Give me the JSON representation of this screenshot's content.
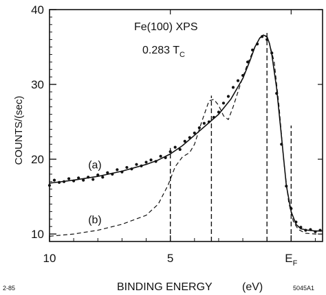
{
  "chart_data": {
    "type": "scatter",
    "title_line1": "Fe(100) XPS",
    "title_line2_prefix": "0.283 T",
    "title_line2_sub": "C",
    "xlabel": "BINDING ENERGY",
    "xunit": "(eV)",
    "ylabel": "COUNTS/(sec)",
    "corner_left": "2-85",
    "corner_right": "5045A1",
    "xlim": [
      10,
      -1.3
    ],
    "ylim": [
      9,
      40
    ],
    "yticks": [
      10,
      20,
      30,
      40
    ],
    "xticks": [
      {
        "value": 10,
        "label": "10"
      },
      {
        "value": 5,
        "label": "5"
      },
      {
        "value": 0,
        "label": "E",
        "sub": "F"
      }
    ],
    "curve_labels": [
      {
        "text": "(a)",
        "x": 8.4,
        "y": 19.3
      },
      {
        "text": "(b)",
        "x": 8.4,
        "y": 12.0
      }
    ],
    "vlines": [
      {
        "x": 5.0,
        "y_top": 21.5
      },
      {
        "x": 3.3,
        "y_top": 28.5
      },
      {
        "x": 1.0,
        "y_top": 37.0
      },
      {
        "x": 0.0,
        "y_top": 24.5
      }
    ],
    "series": [
      {
        "label": "(a)",
        "style": "solid",
        "x": [
          10.0,
          9.0,
          8.0,
          7.0,
          6.0,
          5.5,
          5.0,
          4.5,
          4.0,
          3.5,
          3.0,
          2.5,
          2.0,
          1.7,
          1.5,
          1.3,
          1.15,
          1.0,
          0.9,
          0.8,
          0.6,
          0.4,
          0.2,
          0.0,
          -0.2,
          -0.4,
          -0.7,
          -1.0,
          -1.3
        ],
        "y": [
          16.8,
          17.2,
          17.7,
          18.4,
          19.3,
          19.9,
          20.7,
          21.8,
          23.2,
          24.6,
          26.0,
          28.0,
          30.8,
          33.2,
          35.0,
          36.2,
          36.6,
          36.4,
          35.5,
          34.0,
          29.5,
          23.0,
          16.5,
          13.0,
          11.3,
          10.7,
          10.5,
          10.4,
          10.4
        ]
      },
      {
        "label": "(b)",
        "style": "dashed",
        "x": [
          10.0,
          9.0,
          8.0,
          7.0,
          6.0,
          5.5,
          5.1,
          4.8,
          4.5,
          4.2,
          4.0,
          3.7,
          3.4,
          3.2,
          3.0,
          2.8,
          2.6,
          2.4,
          2.1,
          1.8,
          1.5,
          1.3,
          1.1,
          1.0,
          0.9,
          0.7,
          0.5,
          0.3,
          0.1,
          -0.1,
          -0.3,
          -0.6,
          -1.0,
          -1.3
        ],
        "y": [
          9.7,
          10.0,
          10.5,
          11.3,
          12.5,
          14.0,
          16.5,
          19.0,
          20.3,
          20.9,
          22.0,
          25.0,
          27.8,
          28.0,
          27.2,
          25.8,
          25.3,
          27.0,
          30.0,
          32.8,
          35.0,
          36.2,
          36.5,
          36.3,
          35.5,
          33.0,
          27.0,
          19.5,
          14.2,
          11.6,
          10.6,
          10.1,
          10.0,
          10.0
        ]
      },
      {
        "label": "(a) data",
        "style": "points",
        "x": [
          10.0,
          9.8,
          9.6,
          9.4,
          9.2,
          9.0,
          8.8,
          8.6,
          8.4,
          8.2,
          8.0,
          7.8,
          7.6,
          7.4,
          7.2,
          7.0,
          6.8,
          6.6,
          6.4,
          6.2,
          6.0,
          5.8,
          5.6,
          5.4,
          5.2,
          5.0,
          4.8,
          4.6,
          4.4,
          4.2,
          4.0,
          3.8,
          3.6,
          3.4,
          3.2,
          3.0,
          2.8,
          2.6,
          2.4,
          2.2,
          2.0,
          1.8,
          1.6,
          1.4,
          1.2,
          1.0,
          0.8,
          0.6,
          0.4,
          0.2,
          0.0,
          -0.2,
          -0.4,
          -0.6,
          -0.8,
          -1.0,
          -1.2
        ],
        "y": [
          16.5,
          17.2,
          16.9,
          17.0,
          17.4,
          17.1,
          17.5,
          17.2,
          17.6,
          17.3,
          17.9,
          17.6,
          18.2,
          18.0,
          18.6,
          18.3,
          18.9,
          18.7,
          19.3,
          19.1,
          19.6,
          19.9,
          19.7,
          20.4,
          20.2,
          21.0,
          21.6,
          21.3,
          22.4,
          22.9,
          23.5,
          24.2,
          24.8,
          25.0,
          25.6,
          26.3,
          27.5,
          28.4,
          29.6,
          30.5,
          31.2,
          33.0,
          34.6,
          35.4,
          36.4,
          36.0,
          34.2,
          28.8,
          22.0,
          16.4,
          13.4,
          11.6,
          10.9,
          10.5,
          10.6,
          10.3,
          10.5
        ]
      }
    ]
  }
}
